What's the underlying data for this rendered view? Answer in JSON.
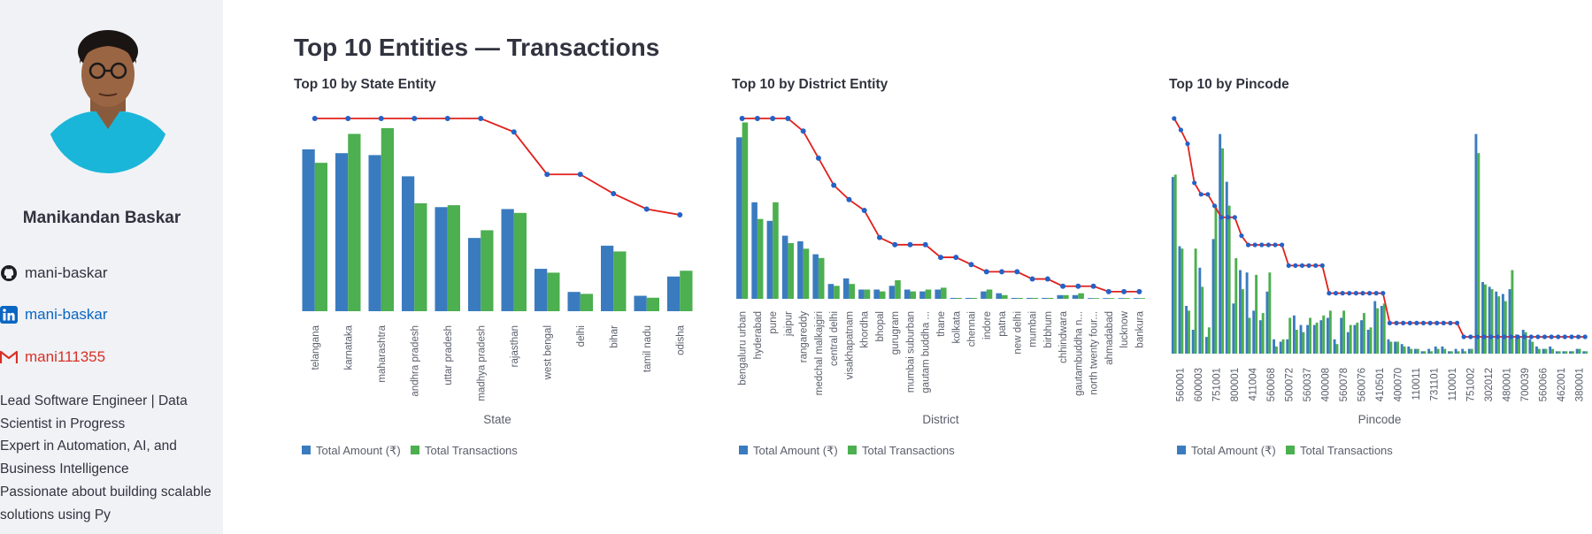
{
  "profile": {
    "name": "Manikandan Baskar",
    "github": "mani-baskar",
    "linkedin": "mani-baskar",
    "email": "mani111355",
    "bio": [
      "Lead Software Engineer | Data",
      "Scientist in Progress",
      "Expert in Automation, AI, and",
      "Business Intelligence",
      "Passionate about building scalable",
      "solutions using Py"
    ]
  },
  "page": {
    "title": "Top 10 Entities — Transactions"
  },
  "colors": {
    "amount": "#3a7bbf",
    "transactions": "#4caf50",
    "line": "#e0201c",
    "marker": "#2462c7"
  },
  "legend": {
    "amount": "Total Amount (₹)",
    "transactions": "Total Transactions"
  },
  "chart_data": [
    {
      "type": "bar",
      "title": "Top 10 by State Entity",
      "xlabel": "State",
      "categories": [
        "telangana",
        "karnataka",
        "maharashtra",
        "andhra pradesh",
        "uttar pradesh",
        "madhya pradesh",
        "rajasthan",
        "west bengal",
        "delhi",
        "bihar",
        "tamil nadu",
        "odisha"
      ],
      "series": [
        {
          "name": "Total Amount (₹)",
          "values": [
            0.84,
            0.82,
            0.81,
            0.7,
            0.54,
            0.38,
            0.53,
            0.22,
            0.1,
            0.34,
            0.08,
            0.18
          ]
        },
        {
          "name": "Total Transactions",
          "values": [
            0.77,
            0.92,
            0.95,
            0.56,
            0.55,
            0.42,
            0.51,
            0.2,
            0.09,
            0.31,
            0.07,
            0.21
          ]
        }
      ],
      "line": [
        1,
        1,
        1,
        1,
        1,
        1,
        0.93,
        0.71,
        0.71,
        0.61,
        0.53,
        0.5
      ]
    },
    {
      "type": "bar",
      "title": "Top 10 by District Entity",
      "xlabel": "District",
      "categories": [
        "bengaluru urban",
        "hyderabad",
        "pune",
        "jaipur",
        "rangareddy",
        "medchal malkajgiri",
        "central delhi",
        "visakhapatnam",
        "khordha",
        "bhopal",
        "gurugram",
        "mumbai suburban",
        "gautam buddha ...",
        "thane",
        "kolkata",
        "chennai",
        "indore",
        "patna",
        "new delhi",
        "mumbai",
        "birbhum",
        "chhindwara",
        "gautambuddha n...",
        "north twenty four...",
        "ahmadabad",
        "lucknow",
        "bankura"
      ],
      "series": [
        {
          "name": "Total Amount (₹)",
          "values": [
            0.87,
            0.52,
            0.42,
            0.34,
            0.31,
            0.24,
            0.08,
            0.11,
            0.05,
            0.05,
            0.07,
            0.05,
            0.04,
            0.05,
            0.005,
            0.005,
            0.04,
            0.03,
            0.005,
            0.005,
            0.005,
            0.02,
            0.02,
            0.004,
            0.004,
            0.004,
            0.004
          ]
        },
        {
          "name": "Total Transactions",
          "values": [
            0.95,
            0.43,
            0.52,
            0.3,
            0.27,
            0.22,
            0.07,
            0.08,
            0.05,
            0.04,
            0.1,
            0.04,
            0.05,
            0.06,
            0.005,
            0.005,
            0.05,
            0.02,
            0.005,
            0.005,
            0.005,
            0.02,
            0.03,
            0.004,
            0.004,
            0.004,
            0.004
          ]
        }
      ],
      "line": [
        1,
        1,
        1,
        1,
        0.93,
        0.78,
        0.63,
        0.55,
        0.49,
        0.34,
        0.3,
        0.3,
        0.3,
        0.23,
        0.23,
        0.19,
        0.15,
        0.15,
        0.15,
        0.11,
        0.11,
        0.07,
        0.07,
        0.07,
        0.04,
        0.04,
        0.04
      ]
    },
    {
      "type": "bar",
      "title": "Top 10 by Pincode",
      "xlabel": "Pincode",
      "tick_labels": [
        "560001",
        "600003",
        "751001",
        "800001",
        "411004",
        "560068",
        "500072",
        "560037",
        "400008",
        "560078",
        "560076",
        "410501",
        "400070",
        "110011",
        "731101",
        "110001",
        "751002",
        "302012",
        "480001",
        "700039",
        "560066",
        "462001",
        "380001"
      ],
      "series": [
        {
          "name": "Total Amount (₹)",
          "values": [
            0.74,
            0.45,
            0.2,
            0.1,
            0.36,
            0.07,
            0.48,
            0.92,
            0.72,
            0.21,
            0.35,
            0.34,
            0.18,
            0.14,
            0.26,
            0.06,
            0.05,
            0.06,
            0.16,
            0.12,
            0.12,
            0.12,
            0.14,
            0.15,
            0.06,
            0.15,
            0.09,
            0.12,
            0.14,
            0.1,
            0.22,
            0.2,
            0.06,
            0.05,
            0.04,
            0.03,
            0.02,
            0.01,
            0.02,
            0.03,
            0.03,
            0.01,
            0.02,
            0.02,
            0.02,
            0.92,
            0.3,
            0.28,
            0.26,
            0.25,
            0.27,
            0.08,
            0.1,
            0.06,
            0.03,
            0.02,
            0.03,
            0.01,
            0.01,
            0.01,
            0.02,
            0.01
          ]
        },
        {
          "name": "Total Transactions",
          "values": [
            0.75,
            0.44,
            0.18,
            0.44,
            0.28,
            0.11,
            0.62,
            0.86,
            0.62,
            0.4,
            0.27,
            0.15,
            0.33,
            0.17,
            0.34,
            0.03,
            0.06,
            0.15,
            0.1,
            0.09,
            0.15,
            0.13,
            0.16,
            0.18,
            0.04,
            0.18,
            0.12,
            0.13,
            0.17,
            0.11,
            0.19,
            0.21,
            0.05,
            0.05,
            0.03,
            0.02,
            0.02,
            0.01,
            0.01,
            0.02,
            0.02,
            0.01,
            0.01,
            0.01,
            0.02,
            0.84,
            0.29,
            0.27,
            0.24,
            0.22,
            0.35,
            0.07,
            0.09,
            0.05,
            0.02,
            0.02,
            0.02,
            0.01,
            0.01,
            0.01,
            0.02,
            0.01
          ]
        }
      ],
      "line": [
        1,
        0.95,
        0.89,
        0.72,
        0.67,
        0.67,
        0.62,
        0.57,
        0.57,
        0.57,
        0.49,
        0.45,
        0.45,
        0.45,
        0.45,
        0.45,
        0.45,
        0.36,
        0.36,
        0.36,
        0.36,
        0.36,
        0.36,
        0.24,
        0.24,
        0.24,
        0.24,
        0.24,
        0.24,
        0.24,
        0.24,
        0.24,
        0.11,
        0.11,
        0.11,
        0.11,
        0.11,
        0.11,
        0.11,
        0.11,
        0.11,
        0.11,
        0.11,
        0.05,
        0.05,
        0.05,
        0.05,
        0.05,
        0.05,
        0.05,
        0.05,
        0.05,
        0.05,
        0.05,
        0.05,
        0.05,
        0.05,
        0.05,
        0.05,
        0.05,
        0.05,
        0.05
      ]
    }
  ]
}
